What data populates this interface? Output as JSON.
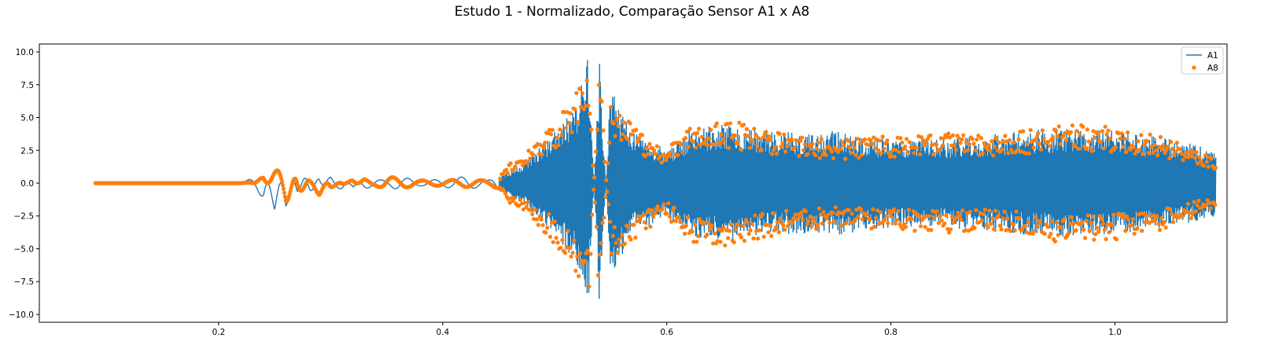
{
  "chart_data": {
    "type": "line",
    "title": "Estudo 1 - Normalizado, Comparação Sensor A1 x A8",
    "xlabel": "",
    "ylabel": "",
    "xlim": [
      0.04,
      1.1
    ],
    "ylim": [
      -10.6,
      10.6
    ],
    "xticks": [
      0.2,
      0.4,
      0.6,
      0.8,
      1.0
    ],
    "xtick_labels": [
      "0.2",
      "0.4",
      "0.6",
      "0.8",
      "1.0"
    ],
    "yticks": [
      -10.0,
      -7.5,
      -5.0,
      -2.5,
      0.0,
      2.5,
      5.0,
      7.5,
      10.0
    ],
    "ytick_labels": [
      "−10.0",
      "−7.5",
      "−5.0",
      "−2.5",
      "0.0",
      "2.5",
      "5.0",
      "7.5",
      "10.0"
    ],
    "grid": false,
    "legend_position": "top-right",
    "series": [
      {
        "name": "A1",
        "style": "line",
        "color": "#1f77b4",
        "x": [
          0.09,
          0.2,
          0.22,
          0.23,
          0.24,
          0.25,
          0.26,
          0.27,
          0.28,
          0.29,
          0.3,
          0.31,
          0.32,
          0.33,
          0.34,
          0.35,
          0.36,
          0.38,
          0.4,
          0.42,
          0.44,
          0.45,
          0.46,
          0.47,
          0.48,
          0.5,
          0.52,
          0.53,
          0.54,
          0.55,
          0.57,
          0.58,
          0.6,
          0.62,
          0.65,
          0.7,
          0.75,
          0.8,
          0.85,
          0.9,
          0.95,
          1.0,
          1.05,
          1.09
        ],
        "y": [
          0,
          0,
          0,
          0.4,
          1.1,
          -2.0,
          1.9,
          -1.0,
          1.3,
          -0.7,
          0.6,
          0.4,
          -0.3,
          0.4,
          0.3,
          0.2,
          0.5,
          0.2,
          0.3,
          0.5,
          0.2,
          0.6,
          1.0,
          1.5,
          2.5,
          4.0,
          6.5,
          9.8,
          -9.6,
          7.5,
          4.0,
          3.5,
          2.6,
          4.1,
          4.5,
          3.9,
          4.0,
          3.4,
          3.4,
          3.8,
          4.2,
          4.0,
          3.4,
          2.5
        ]
      },
      {
        "name": "A8",
        "style": "markers",
        "color": "#ff7f0e",
        "x": [
          0.09,
          0.2,
          0.22,
          0.23,
          0.24,
          0.25,
          0.26,
          0.27,
          0.28,
          0.29,
          0.3,
          0.31,
          0.32,
          0.33,
          0.34,
          0.35,
          0.36,
          0.38,
          0.4,
          0.42,
          0.44,
          0.45,
          0.46,
          0.47,
          0.48,
          0.5,
          0.52,
          0.53,
          0.54,
          0.55,
          0.57,
          0.58,
          0.6,
          0.62,
          0.65,
          0.7,
          0.75,
          0.8,
          0.85,
          0.9,
          0.95,
          1.0,
          1.05,
          1.09
        ],
        "y": [
          0,
          0,
          0,
          0.1,
          -0.5,
          0.8,
          2.0,
          -1.4,
          0.3,
          0.9,
          -0.4,
          0.2,
          -0.3,
          0.3,
          0.2,
          0.5,
          0.4,
          0.2,
          0.2,
          0.3,
          0.2,
          0.4,
          1.5,
          2.0,
          3.0,
          4.6,
          7.0,
          9.5,
          -9.6,
          6.0,
          4.5,
          3.6,
          2.6,
          4.4,
          4.9,
          3.9,
          3.3,
          3.6,
          3.8,
          3.6,
          4.6,
          4.3,
          3.4,
          1.8
        ]
      }
    ]
  }
}
